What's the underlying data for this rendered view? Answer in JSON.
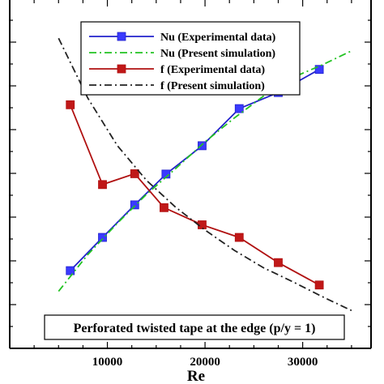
{
  "chart_data": {
    "type": "line",
    "xlabel": "Re",
    "ylabel": "",
    "xlim": [
      0,
      37000
    ],
    "ylim": [
      0,
      1
    ],
    "x_ticks": [
      10000,
      20000,
      30000
    ],
    "grid": false,
    "legend_position": "top-center",
    "annotation": "Perforated twisted tape at the edge (p/y = 1)",
    "series": [
      {
        "name": "Nu (Experimental data)",
        "style": "solid",
        "marker": "square",
        "color": "#2222cc",
        "marker_color": "#3a3aff",
        "x": [
          6200,
          9500,
          12800,
          16000,
          19700,
          23500,
          27500,
          31700
        ],
        "y": [
          0.222,
          0.317,
          0.41,
          0.498,
          0.579,
          0.685,
          0.731,
          0.797
        ]
      },
      {
        "name": "Nu (Present simulation)",
        "style": "dashdot",
        "marker": "none",
        "color": "#22c322",
        "x": [
          5000,
          8000,
          11000,
          14000,
          17000,
          20000,
          23000,
          26000,
          29000,
          32000,
          35000
        ],
        "y": [
          0.163,
          0.268,
          0.357,
          0.44,
          0.514,
          0.59,
          0.658,
          0.721,
          0.774,
          0.81,
          0.85
        ]
      },
      {
        "name": "f (Experimental data)",
        "style": "solid",
        "marker": "square",
        "color": "#b01010",
        "marker_color": "#c01818",
        "x": [
          6200,
          9500,
          12800,
          15800,
          19700,
          23500,
          27500,
          31700
        ],
        "y": [
          0.696,
          0.468,
          0.499,
          0.402,
          0.353,
          0.317,
          0.245,
          0.181
        ]
      },
      {
        "name": "f (Present simulation)",
        "style": "dashdot",
        "marker": "none",
        "color": "#222222",
        "x": [
          5000,
          8000,
          11000,
          14000,
          17000,
          20000,
          23000,
          26000,
          29000,
          32000,
          35000
        ],
        "y": [
          0.886,
          0.715,
          0.58,
          0.48,
          0.403,
          0.338,
          0.28,
          0.23,
          0.19,
          0.148,
          0.108
        ]
      }
    ]
  }
}
